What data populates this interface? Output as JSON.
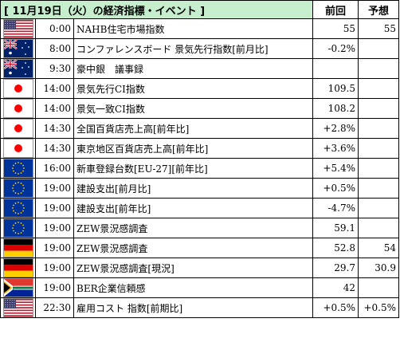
{
  "header": {
    "title": "[  11月19日（火）の経済指標・イベント  ]",
    "previous_label": "前回",
    "forecast_label": "予想"
  },
  "rows": [
    {
      "flag": "us-flag-icon",
      "time": "0:00",
      "event": "NAHB住宅市場指数",
      "previous": "55",
      "forecast": "55"
    },
    {
      "flag": "australia-flag-icon",
      "time": "8:00",
      "event": "コンファレンスボード 景気先行指数[前月比]",
      "previous": "-0.2%",
      "forecast": ""
    },
    {
      "flag": "australia-flag-icon",
      "time": "9:30",
      "event": "豪中銀　議事録",
      "previous": "",
      "forecast": ""
    },
    {
      "flag": "japan-flag-icon",
      "time": "14:00",
      "event": "景気先行CI指数",
      "previous": "109.5",
      "forecast": ""
    },
    {
      "flag": "japan-flag-icon",
      "time": "14:00",
      "event": "景気一致CI指数",
      "previous": "108.2",
      "forecast": ""
    },
    {
      "flag": "japan-flag-icon",
      "time": "14:30",
      "event": "全国百貨店売上高[前年比]",
      "previous": "+2.8%",
      "forecast": ""
    },
    {
      "flag": "japan-flag-icon",
      "time": "14:30",
      "event": "東京地区百貨店売上高[前年比]",
      "previous": "+3.6%",
      "forecast": ""
    },
    {
      "flag": "eu-flag-icon",
      "time": "16:00",
      "event": "新車登録台数[EU-27][前年比]",
      "previous": "+5.4%",
      "forecast": ""
    },
    {
      "flag": "eu-flag-icon",
      "time": "19:00",
      "event": "建設支出[前月比]",
      "previous": "+0.5%",
      "forecast": ""
    },
    {
      "flag": "eu-flag-icon",
      "time": "19:00",
      "event": "建設支出[前年比]",
      "previous": "-4.7%",
      "forecast": ""
    },
    {
      "flag": "eu-flag-icon",
      "time": "19:00",
      "event": "ZEW景況感調査",
      "previous": "59.1",
      "forecast": ""
    },
    {
      "flag": "germany-flag-icon",
      "time": "19:00",
      "event": "ZEW景況感調査",
      "previous": "52.8",
      "forecast": "54"
    },
    {
      "flag": "germany-flag-icon",
      "time": "19:00",
      "event": "ZEW景況感調査[現況]",
      "previous": "29.7",
      "forecast": "30.9"
    },
    {
      "flag": "south-africa-flag-icon",
      "time": "19:00",
      "event": "BER企業信頼感",
      "previous": "42",
      "forecast": ""
    },
    {
      "flag": "us-flag-icon",
      "time": "22:30",
      "event": "雇用コスト 指数[前期比]",
      "previous": "+0.5%",
      "forecast": "+0.5%"
    }
  ],
  "colors": {
    "title_background": "#c6eecd",
    "us_red": "#b22234",
    "us_blue": "#3c3b6e",
    "au_blue": "#012169",
    "jp_red": "#ff0000",
    "eu_blue": "#003399",
    "eu_star": "#ffcc00",
    "de_red": "#dd0000",
    "de_gold": "#ffce00",
    "za_green": "#007a4d"
  }
}
